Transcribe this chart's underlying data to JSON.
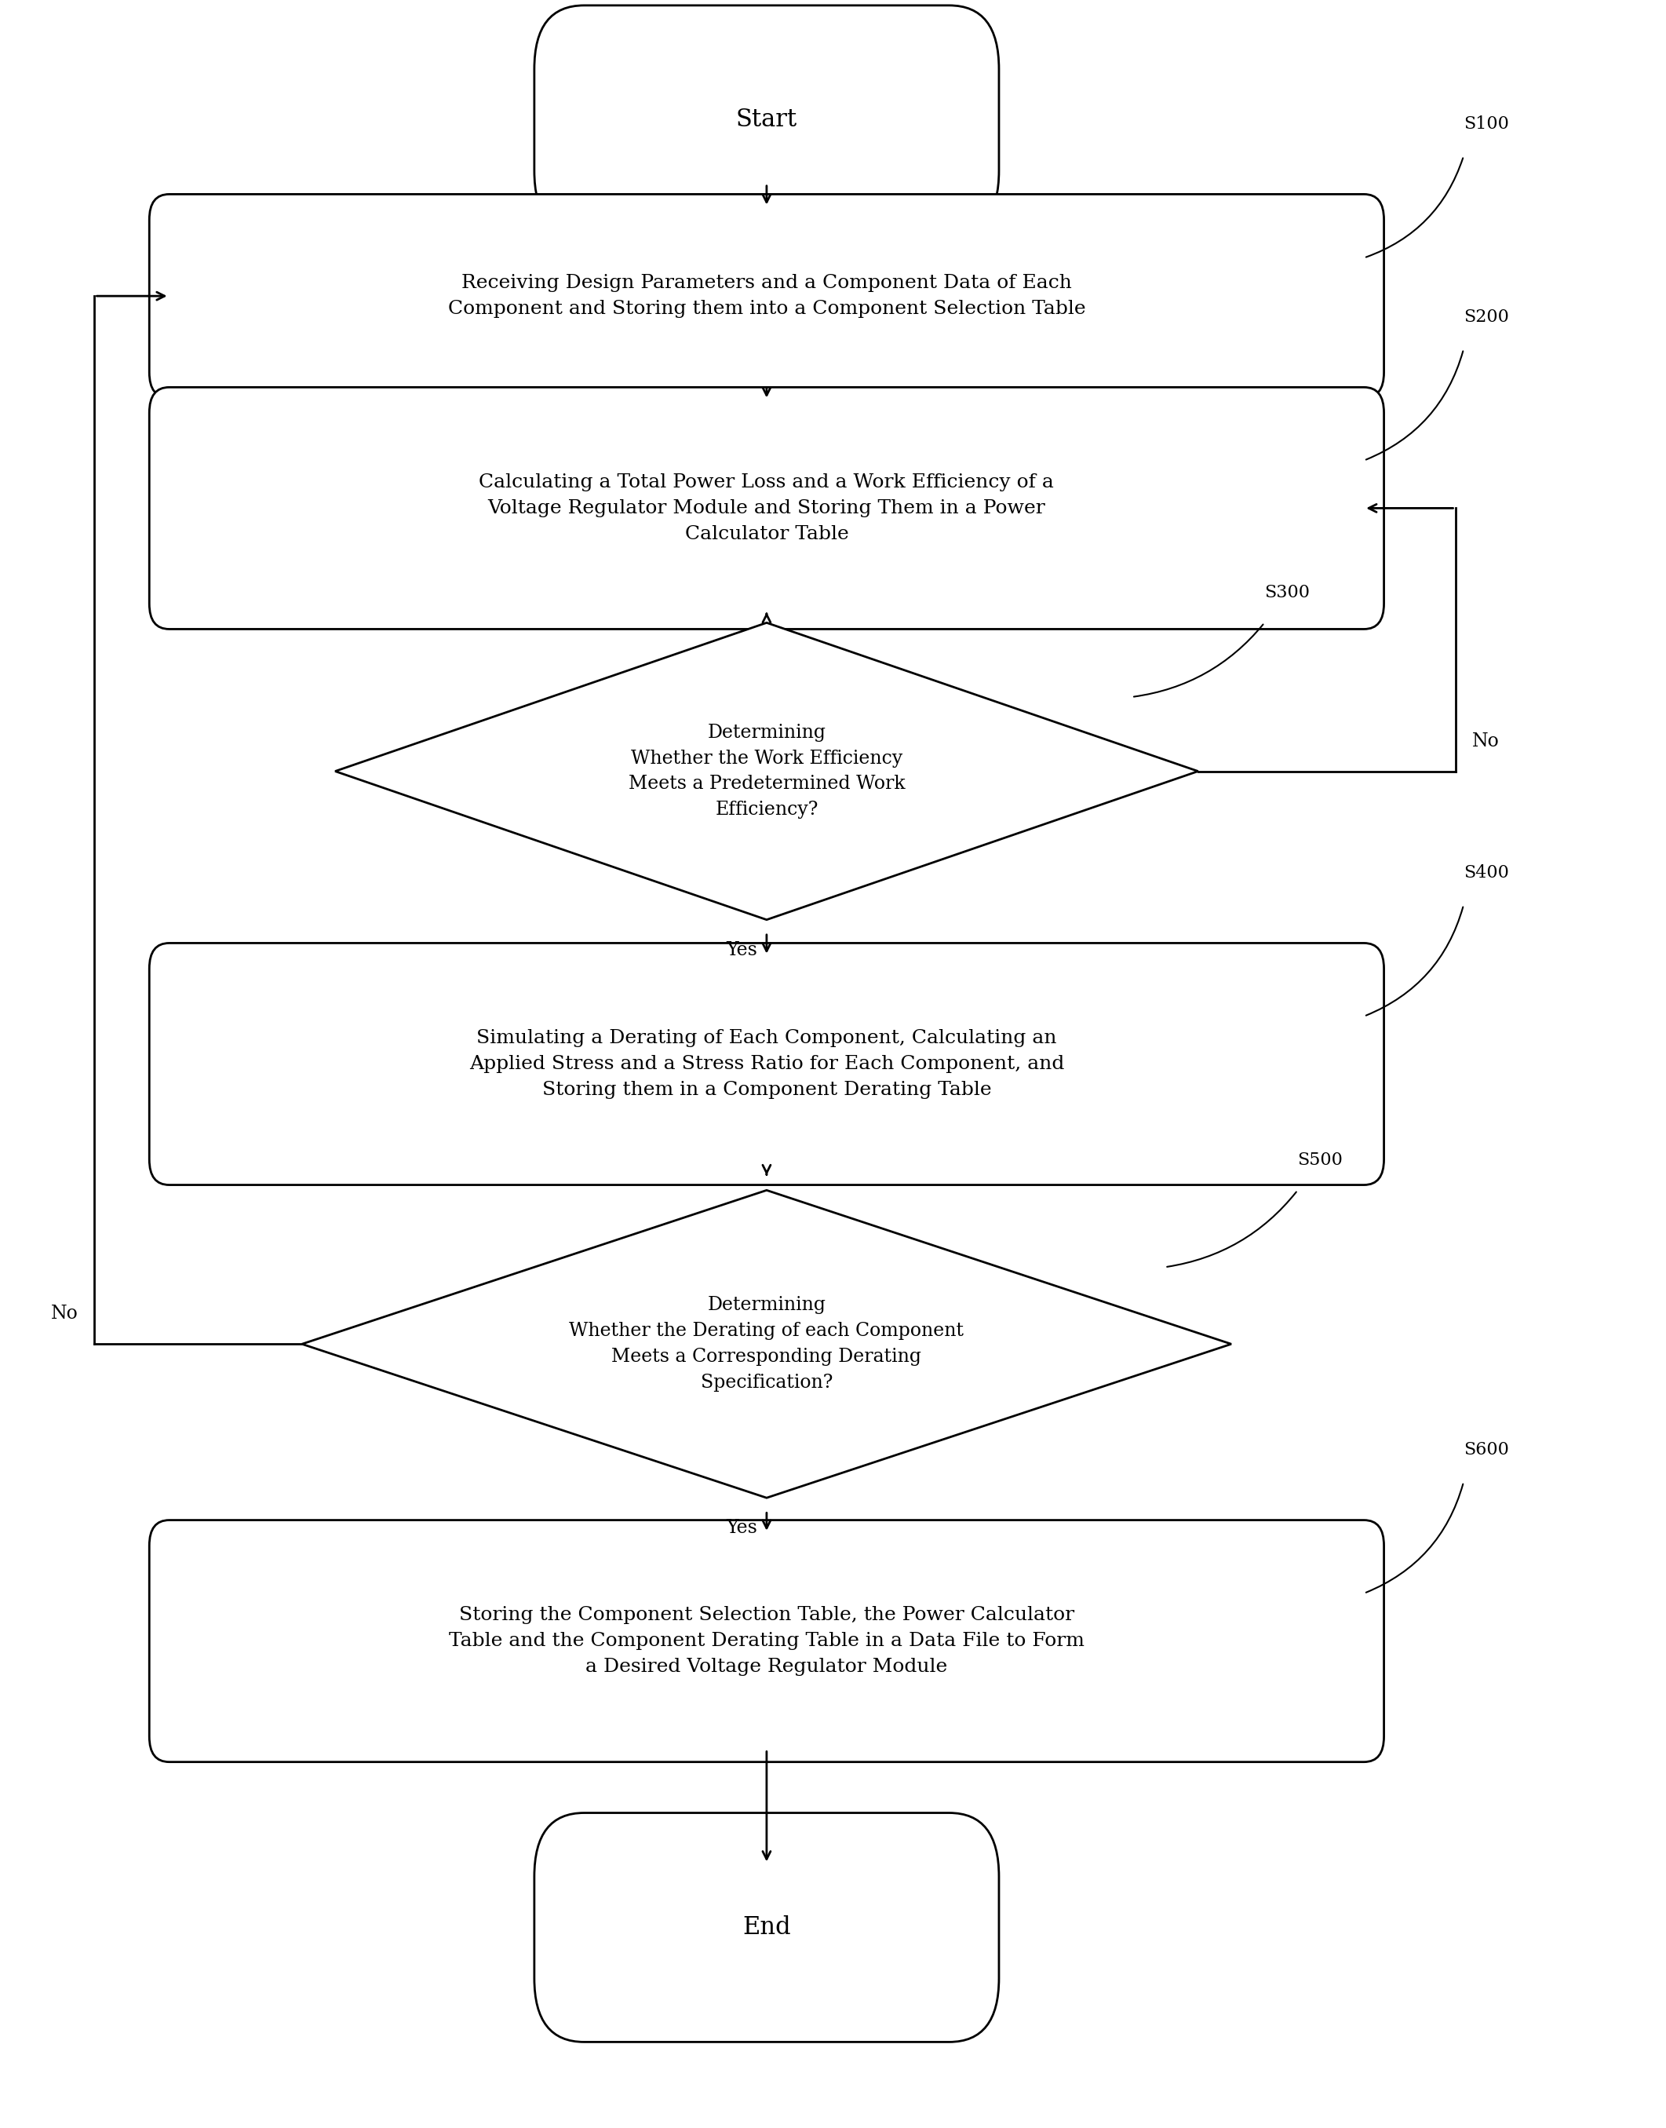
{
  "bg_color": "#ffffff",
  "line_color": "#000000",
  "text_color": "#000000",
  "fig_width": 21.23,
  "fig_height": 27.11,
  "start_text": "Start",
  "end_text": "End",
  "s100_label": "S100",
  "s200_label": "S200",
  "s300_label": "S300",
  "s400_label": "S400",
  "s500_label": "S500",
  "s600_label": "S600",
  "box1_text": "Receiving Design Parameters and a Component Data of Each\nComponent and Storing them into a Component Selection Table",
  "box2_text": "Calculating a Total Power Loss and a Work Efficiency of a\nVoltage Regulator Module and Storing Them in a Power\nCalculator Table",
  "diamond1_text": "Determining\nWhether the Work Efficiency\nMeets a Predetermined Work\nEfficiency?",
  "box3_text": "Simulating a Derating of Each Component, Calculating an\nApplied Stress and a Stress Ratio for Each Component, and\nStoring them in a Component Derating Table",
  "diamond2_text": "Determining\nWhether the Derating of each Component\nMeets a Corresponding Derating\nSpecification?",
  "box4_text": "Storing the Component Selection Table, the Power Calculator\nTable and the Component Derating Table in a Data File to Form\na Desired Voltage Regulator Module",
  "yes_label": "Yes",
  "no_label": "No",
  "font_size_main": 18,
  "font_size_terminal": 22,
  "font_size_diamond": 17,
  "font_size_yn": 17,
  "font_size_step": 16,
  "lw": 2.0
}
